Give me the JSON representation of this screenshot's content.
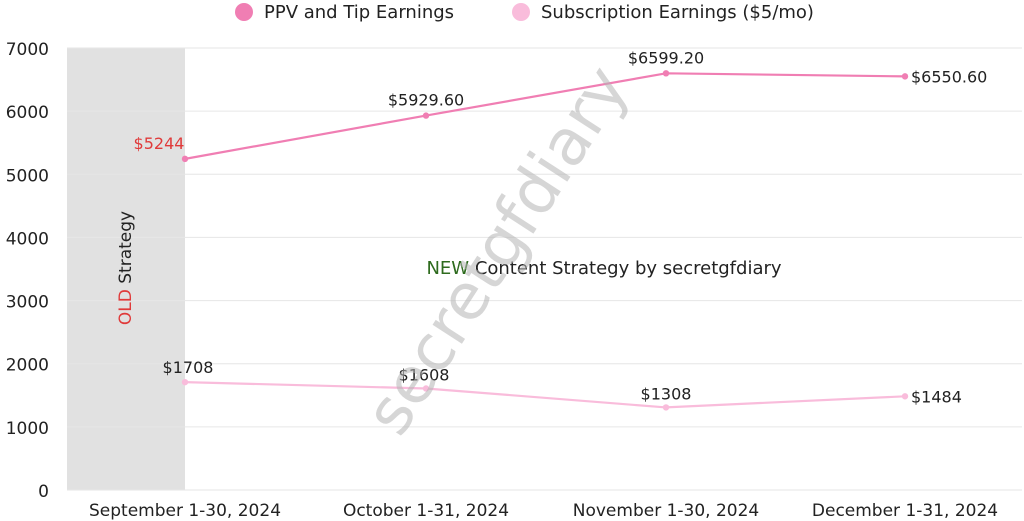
{
  "chart_data": {
    "type": "line",
    "categories": [
      "September 1-30, 2024",
      "October 1-31, 2024",
      "November 1-30, 2024",
      "December 1-31, 2024"
    ],
    "series": [
      {
        "name": "PPV and Tip Earnings",
        "color": "#f07eb3",
        "values": [
          5244,
          5929.6,
          6599.2,
          6550.6
        ],
        "labels": [
          "$5244",
          "$5929.60",
          "$6599.20",
          "$6550.60"
        ]
      },
      {
        "name": "Subscription Earnings ($5/mo)",
        "color": "#f9bcdb",
        "values": [
          1708,
          1608,
          1308,
          1484
        ],
        "labels": [
          "$1708",
          "$1608",
          "$1308",
          "$1484"
        ]
      }
    ],
    "ylim": [
      0,
      7000
    ],
    "yticks": [
      0,
      1000,
      2000,
      3000,
      4000,
      5000,
      6000,
      7000
    ],
    "grid": true,
    "legend_position": "top",
    "highlight_label_color": "#e03a3a",
    "annotations": {
      "old_region": {
        "prefix": "OLD",
        "suffix": " Strategy",
        "prefix_color": "#e03a3a",
        "shade_color": "#e1e1e1"
      },
      "new_strategy": {
        "prefix": "NEW",
        "suffix": " Content Strategy by secretgfdiary",
        "prefix_color": "#2e6b1e"
      }
    },
    "watermark": "secretgfdiary"
  }
}
